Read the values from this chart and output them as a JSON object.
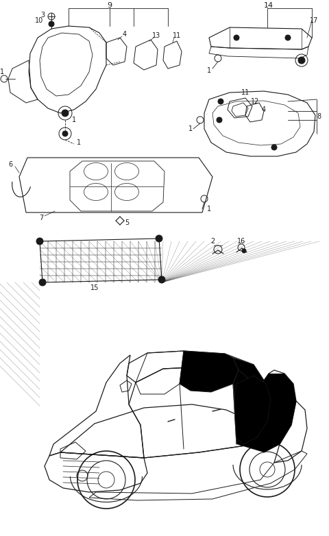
{
  "bg_color": "#ffffff",
  "line_color": "#1a1a1a",
  "fig_width": 4.8,
  "fig_height": 7.82,
  "dpi": 100
}
